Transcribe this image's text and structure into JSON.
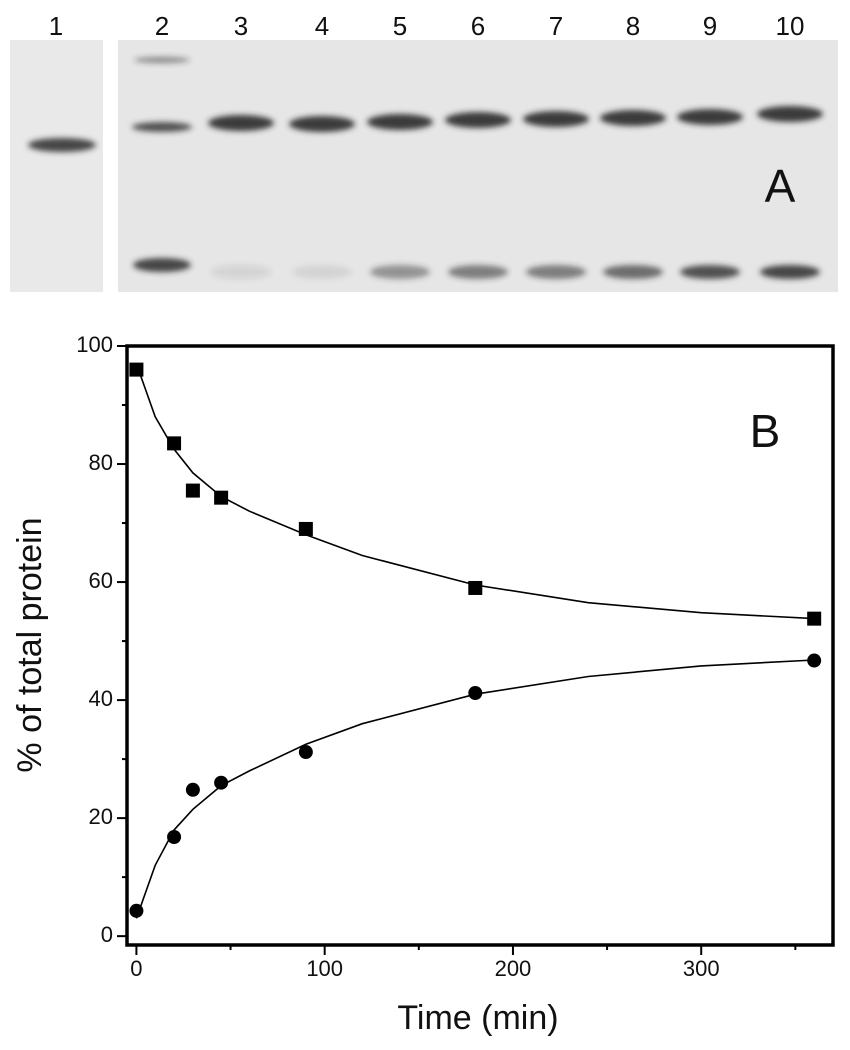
{
  "gel": {
    "panel_label": "A",
    "lanes": [
      "1",
      "2",
      "3",
      "4",
      "5",
      "6",
      "7",
      "8",
      "9",
      "10"
    ]
  },
  "chart_data": {
    "type": "scatter",
    "panel_label": "B",
    "x_label": "Time (min)",
    "y_label": "% of total protein",
    "xlim": [
      -5,
      370
    ],
    "ylim": [
      -1.5,
      100
    ],
    "xticks": [
      0,
      100,
      200,
      300
    ],
    "yticks": [
      0,
      20,
      40,
      60,
      80,
      100
    ],
    "xminor": [
      50,
      150,
      250,
      350
    ],
    "yminor": [
      10,
      30,
      50,
      70,
      90
    ],
    "series": [
      {
        "marker": "square",
        "color": "#000000",
        "x": [
          0,
          20,
          30,
          45,
          90,
          180,
          360
        ],
        "values": [
          96,
          83.5,
          75.5,
          74.3,
          69,
          59,
          53.8
        ]
      },
      {
        "marker": "circle",
        "color": "#000000",
        "x": [
          0,
          20,
          30,
          45,
          90,
          180,
          360
        ],
        "values": [
          4.3,
          16.8,
          24.8,
          26,
          31.2,
          41.2,
          46.7
        ]
      },
      {
        "marker": "line",
        "color": "#000000",
        "x": [
          0,
          10,
          20,
          30,
          45,
          60,
          90,
          120,
          180,
          240,
          300,
          360
        ],
        "values": [
          97,
          88,
          82.5,
          78.5,
          74.5,
          72,
          68,
          64.5,
          59.5,
          56.5,
          54.8,
          53.8
        ]
      },
      {
        "marker": "line",
        "color": "#000000",
        "x": [
          0,
          10,
          20,
          30,
          45,
          60,
          90,
          120,
          180,
          240,
          300,
          360
        ],
        "values": [
          3,
          12,
          18,
          21.5,
          25.5,
          28,
          32.5,
          36,
          41,
          44,
          45.8,
          46.8
        ]
      }
    ]
  }
}
